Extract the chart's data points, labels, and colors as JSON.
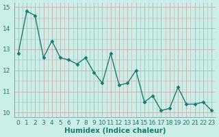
{
  "x": [
    0,
    1,
    2,
    3,
    4,
    5,
    6,
    7,
    8,
    9,
    10,
    11,
    12,
    13,
    14,
    15,
    16,
    17,
    18,
    19,
    20,
    21,
    22,
    23
  ],
  "y": [
    12.8,
    14.8,
    14.6,
    12.6,
    13.4,
    12.6,
    12.5,
    12.3,
    12.6,
    11.9,
    11.4,
    12.8,
    11.3,
    11.4,
    12.0,
    10.5,
    10.8,
    10.1,
    10.2,
    11.2,
    10.4,
    10.4,
    10.5,
    10.1
  ],
  "line_color": "#1a7a6e",
  "marker": "D",
  "marker_size": 2.5,
  "bg_color": "#cceee8",
  "grid_color": "#c8b8b8",
  "xlabel": "Humidex (Indice chaleur)",
  "ylabel": "",
  "ylim": [
    9.8,
    15.2
  ],
  "xlim": [
    -0.5,
    23.5
  ],
  "yticks": [
    10,
    11,
    12,
    13,
    14,
    15
  ],
  "xticks": [
    0,
    1,
    2,
    3,
    4,
    5,
    6,
    7,
    8,
    9,
    10,
    11,
    12,
    13,
    14,
    15,
    16,
    17,
    18,
    19,
    20,
    21,
    22,
    23
  ],
  "tick_label_color": "#1a7a6e",
  "tick_fontsize": 6.5,
  "xlabel_fontsize": 7.5,
  "xlabel_fontweight": "bold",
  "spine_color": "#888888",
  "linewidth": 1.0
}
